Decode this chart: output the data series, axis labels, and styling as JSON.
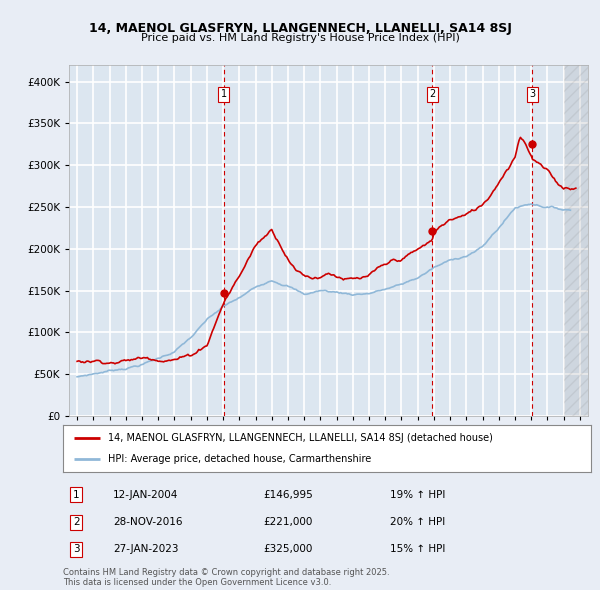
{
  "title1": "14, MAENOL GLASFRYN, LLANGENNECH, LLANELLI, SA14 8SJ",
  "title2": "Price paid vs. HM Land Registry's House Price Index (HPI)",
  "background_color": "#e8edf5",
  "plot_bg_color": "#dce6f0",
  "grid_color": "#ffffff",
  "red_line_color": "#cc0000",
  "blue_line_color": "#90b8d8",
  "marker_color": "#cc0000",
  "vline_color": "#cc0000",
  "legend_label_red": "14, MAENOL GLASFRYN, LLANGENNECH, LLANELLI, SA14 8SJ (detached house)",
  "legend_label_blue": "HPI: Average price, detached house, Carmarthenshire",
  "footer_text": "Contains HM Land Registry data © Crown copyright and database right 2025.\nThis data is licensed under the Open Government Licence v3.0.",
  "transactions": [
    {
      "label": "1",
      "date_num": 2004.04,
      "price": 146995
    },
    {
      "label": "2",
      "date_num": 2016.91,
      "price": 221000
    },
    {
      "label": "3",
      "date_num": 2023.07,
      "price": 325000
    }
  ],
  "transaction_info": [
    {
      "num": "1",
      "date": "12-JAN-2004",
      "price": "£146,995",
      "hpi": "19% ↑ HPI"
    },
    {
      "num": "2",
      "date": "28-NOV-2016",
      "price": "£221,000",
      "hpi": "20% ↑ HPI"
    },
    {
      "num": "3",
      "date": "27-JAN-2023",
      "price": "£325,000",
      "hpi": "15% ↑ HPI"
    }
  ],
  "xlim": [
    1994.5,
    2026.5
  ],
  "ylim": [
    0,
    420000
  ],
  "yticks": [
    0,
    50000,
    100000,
    150000,
    200000,
    250000,
    300000,
    350000,
    400000
  ],
  "hatch_start": 2025.0
}
